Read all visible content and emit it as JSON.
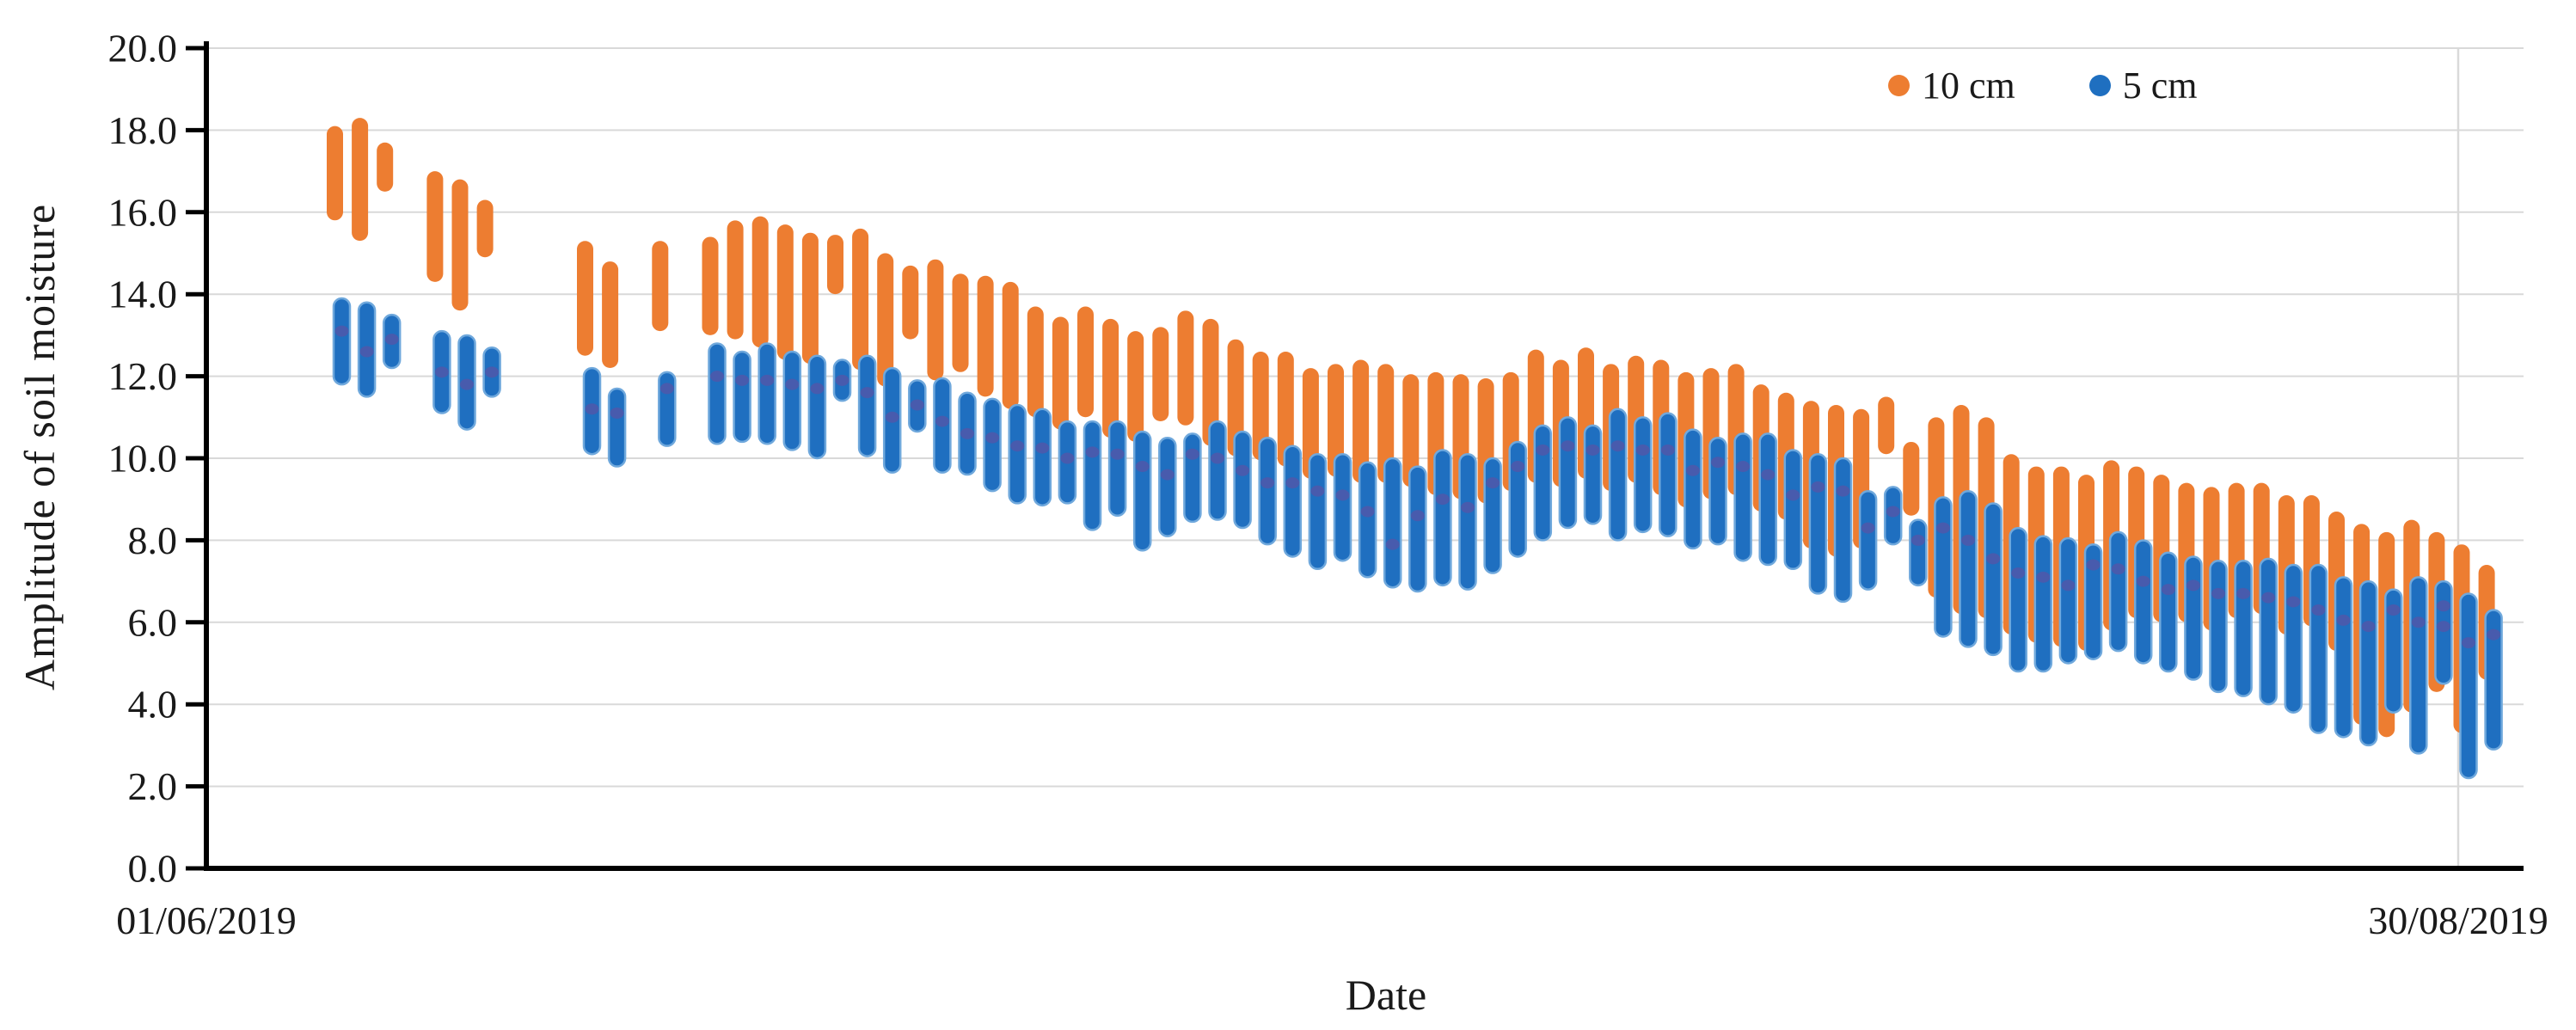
{
  "chart_data": {
    "type": "scatter",
    "title": "",
    "xlabel": "Date",
    "ylabel": "Amplitude of soil moisture",
    "ylim": [
      0.0,
      20.0
    ],
    "y_tick_step": 2.0,
    "y_ticks": [
      "0.0",
      "2.0",
      "4.0",
      "6.0",
      "8.0",
      "10.0",
      "12.0",
      "14.0",
      "16.0",
      "18.0",
      "20.0"
    ],
    "x_tick_labels": [
      "01/06/2019",
      "30/08/2019"
    ],
    "x_axis_note": "d = days after 01/06/2019; daily vertical clusters of overlapping round markers; o=[min,max] of 10 cm series, b=[min,max] of 5 cm series, m = dense core dot of 5 cm cluster",
    "grid": {
      "horizontal": true,
      "vertical_line_at_day": 90,
      "color": "#d9d9d9"
    },
    "legend_position": "top-right-inside",
    "series": [
      {
        "name": "10 cm",
        "color": "#ED7D31"
      },
      {
        "name": "5 cm",
        "color": "#1F6FC0",
        "edge_color": "#6FA8DC",
        "core_dot_color": "#5356A8"
      }
    ],
    "clusters": [
      {
        "d": 5,
        "o": [
          16.0,
          17.9
        ],
        "b": [
          12.0,
          13.7
        ],
        "m": 13.1
      },
      {
        "d": 6,
        "o": [
          15.5,
          18.1
        ],
        "b": [
          11.7,
          13.6
        ],
        "m": 12.6
      },
      {
        "d": 7,
        "o": [
          16.7,
          17.5
        ],
        "b": [
          12.4,
          13.3
        ],
        "m": 12.9
      },
      {
        "d": 9,
        "o": [
          14.5,
          16.8
        ],
        "b": [
          11.3,
          12.9
        ],
        "m": 12.1
      },
      {
        "d": 10,
        "o": [
          13.8,
          16.6
        ],
        "b": [
          10.9,
          12.8
        ],
        "m": 11.8
      },
      {
        "d": 11,
        "o": [
          15.1,
          16.1
        ],
        "b": [
          11.7,
          12.5
        ],
        "m": 12.1
      },
      {
        "d": 15,
        "o": [
          12.7,
          15.1
        ],
        "b": [
          10.3,
          12.0
        ],
        "m": 11.2
      },
      {
        "d": 16,
        "o": [
          12.4,
          14.6
        ],
        "b": [
          10.0,
          11.5
        ],
        "m": 11.1
      },
      {
        "d": 18,
        "o": [
          13.3,
          15.1
        ],
        "b": [
          10.5,
          11.9
        ],
        "m": 11.7
      },
      {
        "d": 20,
        "o": [
          13.2,
          15.2
        ],
        "b": [
          10.55,
          12.6
        ],
        "m": 12.0
      },
      {
        "d": 21,
        "o": [
          13.1,
          15.6
        ],
        "b": [
          10.6,
          12.4
        ],
        "m": 11.9
      },
      {
        "d": 22,
        "o": [
          12.9,
          15.7
        ],
        "b": [
          10.55,
          12.6
        ],
        "m": 11.9
      },
      {
        "d": 23,
        "o": [
          12.6,
          15.5
        ],
        "b": [
          10.4,
          12.4
        ],
        "m": 11.8
      },
      {
        "d": 24,
        "o": [
          12.5,
          15.3
        ],
        "b": [
          10.2,
          12.3
        ],
        "m": 11.7
      },
      {
        "d": 25,
        "o": [
          14.2,
          15.25
        ],
        "b": [
          11.6,
          12.2
        ],
        "m": 11.9
      },
      {
        "d": 26,
        "o": [
          12.35,
          15.4
        ],
        "b": [
          10.25,
          12.3
        ],
        "m": 11.6
      },
      {
        "d": 27,
        "o": [
          11.95,
          14.8
        ],
        "b": [
          9.85,
          12.0
        ],
        "m": 11.0
      },
      {
        "d": 28,
        "o": [
          13.1,
          14.5
        ],
        "b": [
          10.85,
          11.7
        ],
        "m": 11.3
      },
      {
        "d": 29,
        "o": [
          12.1,
          14.65
        ],
        "b": [
          9.85,
          11.75
        ],
        "m": 10.9
      },
      {
        "d": 30,
        "o": [
          12.3,
          14.3
        ],
        "b": [
          9.8,
          11.4
        ],
        "m": 10.6
      },
      {
        "d": 31,
        "o": [
          11.7,
          14.25
        ],
        "b": [
          9.4,
          11.25
        ],
        "m": 10.5
      },
      {
        "d": 32,
        "o": [
          11.4,
          14.1
        ],
        "b": [
          9.1,
          11.1
        ],
        "m": 10.3
      },
      {
        "d": 33,
        "o": [
          11.2,
          13.5
        ],
        "b": [
          9.05,
          11.0
        ],
        "m": 10.25
      },
      {
        "d": 34,
        "o": [
          10.9,
          13.25
        ],
        "b": [
          9.1,
          10.7
        ],
        "m": 10.0
      },
      {
        "d": 35,
        "o": [
          11.2,
          13.5
        ],
        "b": [
          8.45,
          10.7
        ],
        "m": 10.15
      },
      {
        "d": 36,
        "o": [
          10.7,
          13.2
        ],
        "b": [
          8.8,
          10.7
        ],
        "m": 10.1
      },
      {
        "d": 37,
        "o": [
          10.6,
          12.9
        ],
        "b": [
          7.95,
          10.45
        ],
        "m": 9.8
      },
      {
        "d": 38,
        "o": [
          11.1,
          13.0
        ],
        "b": [
          8.3,
          10.3
        ],
        "m": 9.6
      },
      {
        "d": 39,
        "o": [
          11.0,
          13.4
        ],
        "b": [
          8.65,
          10.4
        ],
        "m": 10.1
      },
      {
        "d": 40,
        "o": [
          10.5,
          13.2
        ],
        "b": [
          8.7,
          10.7
        ],
        "m": 10.0
      },
      {
        "d": 41,
        "o": [
          10.25,
          12.7
        ],
        "b": [
          8.5,
          10.45
        ],
        "m": 9.7
      },
      {
        "d": 42,
        "o": [
          10.15,
          12.4
        ],
        "b": [
          8.1,
          10.3
        ],
        "m": 9.4
      },
      {
        "d": 43,
        "o": [
          10.0,
          12.4
        ],
        "b": [
          7.8,
          10.1
        ],
        "m": 9.4
      },
      {
        "d": 44,
        "o": [
          9.7,
          12.0
        ],
        "b": [
          7.5,
          9.9
        ],
        "m": 9.2
      },
      {
        "d": 45,
        "o": [
          9.75,
          12.1
        ],
        "b": [
          7.7,
          9.9
        ],
        "m": 9.1
      },
      {
        "d": 46,
        "o": [
          9.6,
          12.2
        ],
        "b": [
          7.3,
          9.7
        ],
        "m": 8.7
      },
      {
        "d": 47,
        "o": [
          9.6,
          12.1
        ],
        "b": [
          7.05,
          9.8
        ],
        "m": 7.9
      },
      {
        "d": 48,
        "o": [
          9.5,
          11.85
        ],
        "b": [
          6.95,
          9.6
        ],
        "m": 8.6
      },
      {
        "d": 49,
        "o": [
          9.3,
          11.9
        ],
        "b": [
          7.1,
          10.0
        ],
        "m": 9.0
      },
      {
        "d": 50,
        "o": [
          9.2,
          11.85
        ],
        "b": [
          7.0,
          9.9
        ],
        "m": 8.8
      },
      {
        "d": 51,
        "o": [
          9.1,
          11.75
        ],
        "b": [
          7.4,
          9.8
        ],
        "m": 9.4
      },
      {
        "d": 52,
        "o": [
          9.4,
          11.9
        ],
        "b": [
          7.8,
          10.2
        ],
        "m": 9.8
      },
      {
        "d": 53,
        "o": [
          9.6,
          12.45
        ],
        "b": [
          8.2,
          10.6
        ],
        "m": 10.2
      },
      {
        "d": 54,
        "o": [
          9.5,
          12.2
        ],
        "b": [
          8.5,
          10.8
        ],
        "m": 10.3
      },
      {
        "d": 55,
        "o": [
          9.7,
          12.5
        ],
        "b": [
          8.6,
          10.6
        ],
        "m": 10.2
      },
      {
        "d": 56,
        "o": [
          9.4,
          12.1
        ],
        "b": [
          8.2,
          11.0
        ],
        "m": 10.3
      },
      {
        "d": 57,
        "o": [
          9.6,
          12.3
        ],
        "b": [
          8.4,
          10.8
        ],
        "m": 10.2
      },
      {
        "d": 58,
        "o": [
          9.3,
          12.2
        ],
        "b": [
          8.3,
          10.9
        ],
        "m": 10.2
      },
      {
        "d": 59,
        "o": [
          9.0,
          11.9
        ],
        "b": [
          8.0,
          10.5
        ],
        "m": 9.7
      },
      {
        "d": 60,
        "o": [
          9.2,
          12.0
        ],
        "b": [
          8.1,
          10.3
        ],
        "m": 9.9
      },
      {
        "d": 61,
        "o": [
          9.3,
          12.1
        ],
        "b": [
          7.7,
          10.4
        ],
        "m": 9.8
      },
      {
        "d": 62,
        "o": [
          8.9,
          11.6
        ],
        "b": [
          7.6,
          10.4
        ],
        "m": 9.6
      },
      {
        "d": 63,
        "o": [
          8.7,
          11.4
        ],
        "b": [
          7.5,
          10.0
        ],
        "m": 9.1
      },
      {
        "d": 64,
        "o": [
          8.0,
          11.2
        ],
        "b": [
          6.9,
          9.9
        ],
        "m": 9.3
      },
      {
        "d": 65,
        "o": [
          7.8,
          11.1
        ],
        "b": [
          6.7,
          9.8
        ],
        "m": 9.2
      },
      {
        "d": 66,
        "o": [
          8.0,
          11.0
        ],
        "b": [
          7.0,
          9.0
        ],
        "m": 8.3
      },
      {
        "d": 67,
        "o": [
          10.3,
          11.3
        ],
        "b": [
          8.1,
          9.1
        ],
        "m": 8.7
      },
      {
        "d": 68,
        "o": [
          8.8,
          10.2
        ],
        "b": [
          7.1,
          8.3
        ],
        "m": 8.0
      },
      {
        "d": 69,
        "o": [
          6.8,
          10.8
        ],
        "b": [
          5.85,
          8.85
        ],
        "m": 8.3
      },
      {
        "d": 70,
        "o": [
          6.4,
          11.1
        ],
        "b": [
          5.6,
          9.0
        ],
        "m": 8.0
      },
      {
        "d": 71,
        "o": [
          6.3,
          10.8
        ],
        "b": [
          5.4,
          8.7
        ],
        "m": 7.55
      },
      {
        "d": 72,
        "o": [
          5.9,
          9.9
        ],
        "b": [
          5.0,
          8.1
        ],
        "m": 7.2
      },
      {
        "d": 73,
        "o": [
          5.7,
          9.6
        ],
        "b": [
          5.0,
          7.9
        ],
        "m": 7.1
      },
      {
        "d": 74,
        "o": [
          5.6,
          9.6
        ],
        "b": [
          5.2,
          7.85
        ],
        "m": 6.9
      },
      {
        "d": 75,
        "o": [
          5.5,
          9.4
        ],
        "b": [
          5.3,
          7.7
        ],
        "m": 7.4
      },
      {
        "d": 76,
        "o": [
          6.0,
          9.75
        ],
        "b": [
          5.5,
          8.0
        ],
        "m": 7.3
      },
      {
        "d": 77,
        "o": [
          6.3,
          9.6
        ],
        "b": [
          5.2,
          7.8
        ],
        "m": 7.0
      },
      {
        "d": 78,
        "o": [
          6.2,
          9.4
        ],
        "b": [
          5.0,
          7.5
        ],
        "m": 6.8
      },
      {
        "d": 79,
        "o": [
          6.2,
          9.2
        ],
        "b": [
          4.8,
          7.4
        ],
        "m": 6.9
      },
      {
        "d": 80,
        "o": [
          6.0,
          9.1
        ],
        "b": [
          4.5,
          7.3
        ],
        "m": 6.7
      },
      {
        "d": 81,
        "o": [
          6.3,
          9.2
        ],
        "b": [
          4.4,
          7.3
        ],
        "m": 6.7
      },
      {
        "d": 82,
        "o": [
          6.4,
          9.2
        ],
        "b": [
          4.2,
          7.35
        ],
        "m": 6.6
      },
      {
        "d": 83,
        "o": [
          5.9,
          8.9
        ],
        "b": [
          4.0,
          7.2
        ],
        "m": 6.5
      },
      {
        "d": 84,
        "o": [
          6.1,
          8.9
        ],
        "b": [
          3.5,
          7.2
        ],
        "m": 6.3
      },
      {
        "d": 85,
        "o": [
          5.5,
          8.5
        ],
        "b": [
          3.4,
          6.9
        ],
        "m": 6.05
      },
      {
        "d": 86,
        "o": [
          3.7,
          8.2
        ],
        "b": [
          3.2,
          6.8
        ],
        "m": 5.9
      },
      {
        "d": 87,
        "o": [
          3.4,
          8.0
        ],
        "b": [
          4.0,
          6.6
        ],
        "m": 6.3
      },
      {
        "d": 88,
        "o": [
          4.0,
          8.3
        ],
        "b": [
          3.0,
          6.9
        ],
        "m": 6.0
      },
      {
        "d": 89,
        "o": [
          4.5,
          8.0
        ],
        "b": [
          4.7,
          6.8
        ],
        "m": 6.4,
        "m2": 5.9
      },
      {
        "d": 90,
        "o": [
          3.5,
          7.7
        ],
        "b": [
          2.4,
          6.5
        ],
        "m": 5.5
      },
      {
        "d": 91,
        "o": [
          4.8,
          7.2
        ],
        "b": [
          3.1,
          6.1
        ],
        "m": 5.7
      }
    ]
  }
}
